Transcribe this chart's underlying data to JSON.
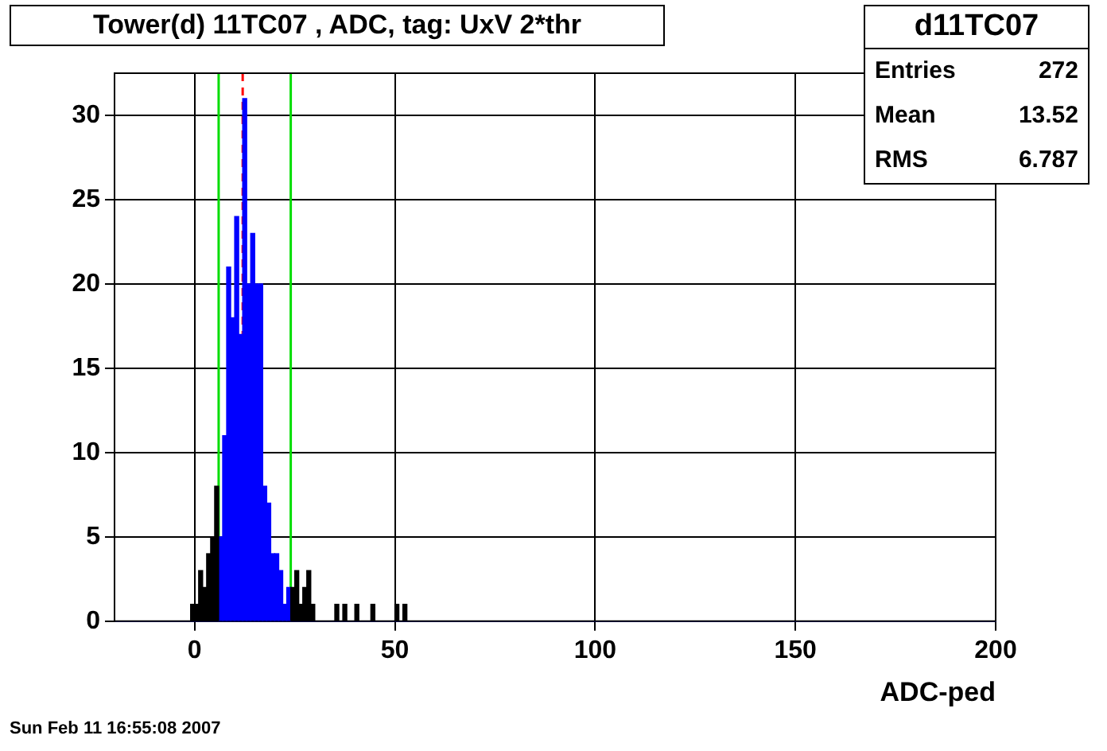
{
  "chart_data": {
    "type": "histogram",
    "title": "Tower(d) 11TC07 , ADC, tag: UxV 2*thr",
    "xlabel": "ADC-ped",
    "bins": [
      -1,
      0,
      1,
      2,
      3,
      4,
      5,
      6,
      7,
      8,
      9,
      10,
      11,
      12,
      13,
      14,
      15,
      16,
      17,
      18,
      19,
      20,
      21,
      22,
      23,
      24,
      25,
      26,
      27,
      28,
      29,
      30,
      31,
      32,
      33,
      34,
      35,
      36,
      37,
      38,
      39,
      40,
      41,
      42,
      43,
      44,
      45,
      46,
      47,
      48,
      49,
      50,
      51,
      52,
      53
    ],
    "series": [
      {
        "color": "#000000",
        "values": [
          1,
          1,
          3,
          2,
          4,
          5,
          8,
          null,
          null,
          null,
          null,
          null,
          null,
          null,
          null,
          null,
          null,
          null,
          null,
          null,
          null,
          null,
          null,
          null,
          null,
          2,
          3,
          1,
          2,
          3,
          1,
          0,
          0,
          0,
          0,
          0,
          1,
          0,
          1,
          0,
          0,
          1,
          0,
          0,
          0,
          1,
          0,
          0,
          0,
          0,
          0,
          1,
          0,
          1
        ]
      },
      {
        "color": "#0000ff",
        "values": [
          null,
          null,
          null,
          null,
          null,
          null,
          null,
          5,
          11,
          21,
          18,
          24,
          17,
          31,
          20,
          23,
          20,
          20,
          8,
          7,
          4,
          4,
          3,
          1,
          2,
          null,
          null,
          null,
          null,
          null,
          null,
          null,
          null,
          null,
          null,
          null,
          null,
          null,
          null,
          null,
          null,
          null,
          null,
          null,
          null,
          null,
          null,
          null,
          null,
          null,
          null,
          null,
          null,
          null
        ]
      }
    ],
    "xlim": [
      -20,
      200
    ],
    "xticks": [
      0,
      50,
      100,
      150,
      200
    ],
    "ylim": [
      0,
      32.5
    ],
    "yticks": [
      0,
      5,
      10,
      15,
      20,
      25,
      30
    ],
    "grid": true,
    "legend": false,
    "ref_lines": [
      {
        "axis": "x",
        "value": 6,
        "color": "#00dd00",
        "line_style": "solid"
      },
      {
        "axis": "x",
        "value": 12,
        "color": "#ff0000",
        "line_style": "dashed"
      },
      {
        "axis": "x",
        "value": 24,
        "color": "#00dd00",
        "line_style": "solid"
      }
    ],
    "annotations": [
      "d11TC07",
      "Entries",
      "272",
      "Mean",
      "13.52",
      "RMS",
      "6.787",
      "Sun Feb 11 16:55:08 2007"
    ]
  }
}
